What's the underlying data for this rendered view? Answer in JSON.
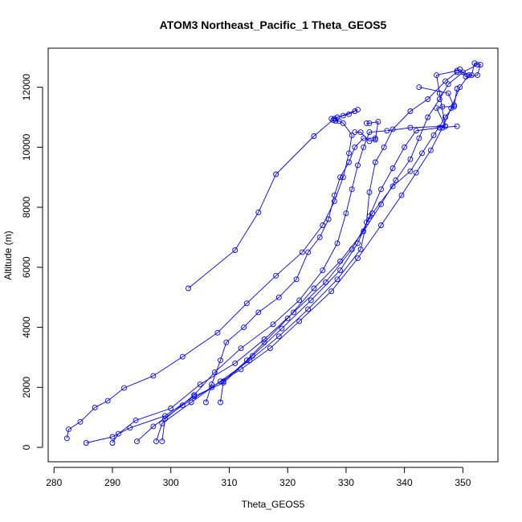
{
  "chart_data": {
    "type": "line",
    "title": "ATOM3 Northeast_Pacific_1 Theta_GEOS5",
    "xlabel": "Theta_GEOS5",
    "ylabel": "Altitude (m)",
    "xlim": [
      279,
      356
    ],
    "ylim": [
      -480,
      13300
    ],
    "xticks": [
      280,
      290,
      300,
      310,
      320,
      330,
      340,
      350
    ],
    "yticks": [
      0,
      2000,
      4000,
      6000,
      8000,
      10000,
      12000
    ],
    "grid": false,
    "legend": "none",
    "color": "#0000ff",
    "marker": "open-circle",
    "series": [
      {
        "values": [
          [
            282.2,
            300
          ],
          [
            282.5,
            600
          ],
          [
            284.5,
            850
          ],
          [
            287.0,
            1330
          ],
          [
            289.2,
            1550
          ],
          [
            292.0,
            1980
          ],
          [
            297.0,
            2380
          ],
          [
            302.0,
            3020
          ],
          [
            308.0,
            3820
          ],
          [
            313.0,
            4800
          ],
          [
            318.0,
            5720
          ],
          [
            322.5,
            6500
          ],
          [
            326.0,
            7400
          ],
          [
            328.0,
            8200
          ],
          [
            329.5,
            9000
          ],
          [
            330.5,
            9800
          ],
          [
            331.0,
            10400
          ],
          [
            329.5,
            10800
          ],
          [
            328.0,
            10950
          ],
          [
            332.0,
            11250
          ]
        ]
      },
      {
        "values": [
          [
            303.0,
            5300
          ],
          [
            311.0,
            6570
          ],
          [
            315.0,
            7830
          ],
          [
            318.0,
            9100
          ],
          [
            324.5,
            10370
          ],
          [
            328.0,
            10950
          ]
        ]
      },
      {
        "values": [
          [
            285.5,
            150
          ],
          [
            290.0,
            350
          ],
          [
            293.0,
            650
          ],
          [
            299.0,
            1050
          ],
          [
            304.0,
            1700
          ],
          [
            309.0,
            2150
          ],
          [
            314.0,
            3050
          ],
          [
            319.0,
            3960
          ],
          [
            324.0,
            4900
          ],
          [
            329.0,
            5900
          ],
          [
            332.0,
            6800
          ],
          [
            334.0,
            7700
          ],
          [
            336.0,
            8600
          ],
          [
            338.0,
            9300
          ],
          [
            340.0,
            10000
          ],
          [
            342.0,
            10550
          ],
          [
            346.0,
            10650
          ],
          [
            349.0,
            10700
          ]
        ]
      },
      {
        "values": [
          [
            290.0,
            150
          ],
          [
            291.0,
            450
          ],
          [
            294.0,
            900
          ],
          [
            300.0,
            1300
          ],
          [
            305.0,
            2100
          ],
          [
            311.0,
            2800
          ],
          [
            316.0,
            3600
          ],
          [
            321.0,
            4500
          ],
          [
            326.5,
            5500
          ],
          [
            331.0,
            6600
          ],
          [
            334.5,
            7800
          ],
          [
            338.0,
            8700
          ],
          [
            341.0,
            9200
          ],
          [
            343.0,
            9800
          ],
          [
            345.0,
            10400
          ],
          [
            347.0,
            11000
          ],
          [
            348.5,
            11400
          ],
          [
            349.0,
            11950
          ]
        ]
      },
      {
        "values": [
          [
            294.2,
            200
          ],
          [
            297.0,
            700
          ],
          [
            302.0,
            1400
          ],
          [
            307.0,
            2000
          ],
          [
            312.0,
            2600
          ],
          [
            317.0,
            3300
          ],
          [
            322.0,
            4200
          ],
          [
            327.5,
            5200
          ],
          [
            332.0,
            6300
          ],
          [
            336.0,
            7400
          ],
          [
            339.5,
            8400
          ],
          [
            342.0,
            9150
          ],
          [
            344.5,
            9900
          ],
          [
            346.5,
            10650
          ],
          [
            348.0,
            11300
          ],
          [
            349.5,
            12000
          ],
          [
            351.0,
            12400
          ]
        ]
      },
      {
        "values": [
          [
            297.5,
            200
          ],
          [
            298.5,
            800
          ],
          [
            303.5,
            1500
          ],
          [
            308.5,
            2200
          ],
          [
            313.5,
            2900
          ],
          [
            318.5,
            3700
          ],
          [
            323.5,
            4600
          ],
          [
            328.5,
            5600
          ],
          [
            332.5,
            6600
          ],
          [
            333.5,
            7500
          ],
          [
            334.0,
            8500
          ],
          [
            335.0,
            9500
          ],
          [
            336.5,
            10000
          ],
          [
            338.0,
            10600
          ],
          [
            341.0,
            11200
          ],
          [
            344.0,
            11600
          ],
          [
            347.0,
            12200
          ],
          [
            349.0,
            12500
          ]
        ]
      },
      {
        "values": [
          [
            298.5,
            200
          ],
          [
            299.0,
            950
          ],
          [
            304.0,
            1750
          ],
          [
            307.5,
            2500
          ],
          [
            312.0,
            3300
          ],
          [
            317.5,
            4100
          ],
          [
            322.0,
            4900
          ],
          [
            326.0,
            5900
          ],
          [
            328.5,
            6800
          ],
          [
            330.0,
            7800
          ],
          [
            331.0,
            8600
          ],
          [
            332.0,
            9400
          ],
          [
            333.0,
            10000
          ],
          [
            334.0,
            10500
          ],
          [
            337.0,
            10550
          ],
          [
            341.0,
            10650
          ],
          [
            347.0,
            10700
          ]
        ]
      },
      {
        "values": [
          [
            306.0,
            1500
          ],
          [
            307.0,
            2100
          ],
          [
            308.5,
            2900
          ],
          [
            309.5,
            3500
          ],
          [
            312.5,
            4000
          ],
          [
            315.0,
            4500
          ],
          [
            318.5,
            5000
          ],
          [
            321.5,
            5600
          ],
          [
            323.5,
            6500
          ],
          [
            325.5,
            7000
          ],
          [
            327.0,
            7600
          ],
          [
            328.0,
            8400
          ],
          [
            329.0,
            9000
          ],
          [
            330.5,
            9500
          ],
          [
            331.5,
            10000
          ],
          [
            333.0,
            10300
          ],
          [
            335.0,
            10300
          ]
        ]
      },
      {
        "values": [
          [
            308.5,
            1500
          ],
          [
            309.0,
            2200
          ],
          [
            313.0,
            2900
          ],
          [
            316.0,
            3500
          ],
          [
            320.0,
            4300
          ],
          [
            324.5,
            5300
          ],
          [
            329.0,
            6200
          ],
          [
            333.0,
            7200
          ],
          [
            336.0,
            8100
          ],
          [
            338.5,
            8900
          ],
          [
            341.0,
            9600
          ],
          [
            342.5,
            10300
          ],
          [
            344.0,
            11000
          ],
          [
            346.0,
            11600
          ],
          [
            347.5,
            12100
          ],
          [
            350.0,
            12500
          ],
          [
            352.5,
            12750
          ]
        ]
      },
      {
        "values": [
          [
            331.5,
            10500
          ],
          [
            332.5,
            10500
          ],
          [
            334.0,
            10200
          ],
          [
            335.0,
            10250
          ],
          [
            335.5,
            10850
          ],
          [
            334.0,
            10800
          ],
          [
            333.5,
            10800
          ]
        ]
      },
      {
        "values": [
          [
            331.5,
            11200
          ],
          [
            330.5,
            11100
          ],
          [
            329.5,
            11050
          ],
          [
            328.5,
            11000
          ],
          [
            327.5,
            10950
          ],
          [
            327.8,
            10900
          ],
          [
            328.2,
            10880
          ],
          [
            328.8,
            10870
          ]
        ]
      },
      {
        "values": [
          [
            342.5,
            12000
          ],
          [
            347.5,
            11800
          ],
          [
            348.5,
            11350
          ],
          [
            346.5,
            11350
          ],
          [
            345.5,
            11300
          ],
          [
            347.0,
            10700
          ],
          [
            346.0,
            11800
          ],
          [
            345.5,
            12400
          ],
          [
            349.0,
            12550
          ],
          [
            351.5,
            12400
          ],
          [
            352.0,
            12800
          ],
          [
            353.0,
            12750
          ],
          [
            352.5,
            12400
          ],
          [
            350.5,
            12350
          ],
          [
            349.5,
            12600
          ]
        ]
      }
    ]
  }
}
